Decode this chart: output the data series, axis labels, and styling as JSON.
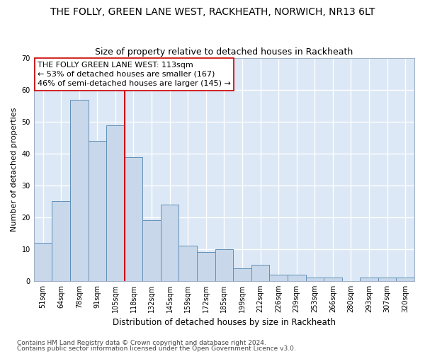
{
  "title": "THE FOLLY, GREEN LANE WEST, RACKHEATH, NORWICH, NR13 6LT",
  "subtitle": "Size of property relative to detached houses in Rackheath",
  "xlabel": "Distribution of detached houses by size in Rackheath",
  "ylabel": "Number of detached properties",
  "categories": [
    "51sqm",
    "64sqm",
    "78sqm",
    "91sqm",
    "105sqm",
    "118sqm",
    "132sqm",
    "145sqm",
    "159sqm",
    "172sqm",
    "185sqm",
    "199sqm",
    "212sqm",
    "226sqm",
    "239sqm",
    "253sqm",
    "266sqm",
    "280sqm",
    "293sqm",
    "307sqm",
    "320sqm"
  ],
  "values": [
    12,
    25,
    57,
    44,
    49,
    39,
    19,
    24,
    11,
    9,
    10,
    4,
    5,
    2,
    2,
    1,
    1,
    0,
    1,
    1,
    1
  ],
  "bar_color": "#c8d8ea",
  "bar_edge_color": "#6090b8",
  "vline_x": 4.5,
  "vline_color": "#cc0000",
  "ylim": [
    0,
    70
  ],
  "yticks": [
    0,
    10,
    20,
    30,
    40,
    50,
    60,
    70
  ],
  "annotation_box_text": "THE FOLLY GREEN LANE WEST: 113sqm\n← 53% of detached houses are smaller (167)\n46% of semi-detached houses are larger (145) →",
  "footer1": "Contains HM Land Registry data © Crown copyright and database right 2024.",
  "footer2": "Contains public sector information licensed under the Open Government Licence v3.0.",
  "fig_facecolor": "#ffffff",
  "ax_facecolor": "#dce8f5",
  "grid_color": "#ffffff",
  "title_fontsize": 10,
  "subtitle_fontsize": 9,
  "tick_fontsize": 7,
  "ylabel_fontsize": 8,
  "xlabel_fontsize": 8.5,
  "annotation_fontsize": 8,
  "footer_fontsize": 6.5
}
